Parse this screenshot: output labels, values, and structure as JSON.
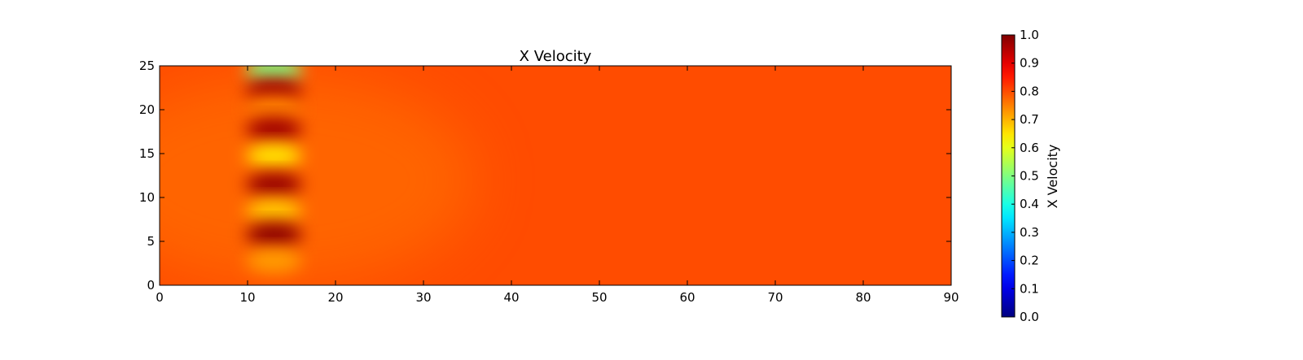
{
  "chart_data": {
    "type": "heatmap",
    "title": "X Velocity",
    "xlabel": "",
    "ylabel": "",
    "xlim": [
      0,
      90
    ],
    "ylim": [
      0,
      25
    ],
    "x_ticks": [
      "0",
      "10",
      "20",
      "30",
      "40",
      "50",
      "60",
      "70",
      "80",
      "90"
    ],
    "y_ticks": [
      "0",
      "5",
      "10",
      "15",
      "20",
      "25"
    ],
    "colormap": "jet",
    "colorbar": {
      "label": "X Velocity",
      "range": [
        0.0,
        1.0
      ],
      "ticks": [
        "0.0",
        "0.1",
        "0.2",
        "0.3",
        "0.4",
        "0.5",
        "0.6",
        "0.7",
        "0.8",
        "0.9",
        "1.0"
      ]
    },
    "background_value": 0.8,
    "features": [
      {
        "x": 13,
        "y": 24.5,
        "value": 0.5
      },
      {
        "x": 13,
        "y": 22.2,
        "value": 0.97
      },
      {
        "x": 13,
        "y": 20.2,
        "value": 0.75
      },
      {
        "x": 13,
        "y": 17.8,
        "value": 0.97
      },
      {
        "x": 13,
        "y": 14.8,
        "value": 0.65
      },
      {
        "x": 13,
        "y": 11.5,
        "value": 0.98
      },
      {
        "x": 13,
        "y": 8.5,
        "value": 0.68
      },
      {
        "x": 13,
        "y": 5.8,
        "value": 0.99
      },
      {
        "x": 13,
        "y": 2.8,
        "value": 0.72
      }
    ],
    "grid": false,
    "legend": "none"
  }
}
